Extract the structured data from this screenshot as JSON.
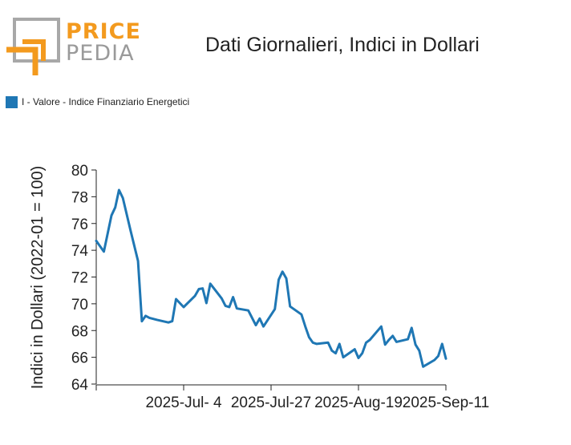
{
  "logo": {
    "brand_top": "PRICE",
    "brand_bottom": "PEDIA"
  },
  "colors": {
    "series": "#1f77b4",
    "logo_orange": "#f39a1e",
    "logo_gray": "#a8a8a8"
  },
  "chart_data": {
    "type": "line",
    "title": "Dati Giornalieri, Indici in Dollari",
    "ylabel": "Indici in Dollari (2022-01 = 100)",
    "xlabel": "",
    "ylim": [
      64,
      80
    ],
    "xlim": [
      "2025-06-11",
      "2025-09-11"
    ],
    "yticks": [
      64,
      66,
      68,
      70,
      72,
      74,
      76,
      78,
      80
    ],
    "xticks": [
      {
        "date": "2025-06-11",
        "label": ""
      },
      {
        "date": "2025-07-04",
        "label": "2025-Jul- 4"
      },
      {
        "date": "2025-07-27",
        "label": "2025-Jul-27"
      },
      {
        "date": "2025-08-19",
        "label": "2025-Aug-19"
      },
      {
        "date": "2025-09-11",
        "label": "2025-Sep-11"
      }
    ],
    "legend": {
      "position": "top-left"
    },
    "grid": false,
    "series": [
      {
        "name": "I - Valore - Indice Finanziario Energetici",
        "color": "#1f77b4",
        "points": [
          [
            "2025-06-11",
            74.7
          ],
          [
            "2025-06-13",
            73.9
          ],
          [
            "2025-06-15",
            76.6
          ],
          [
            "2025-06-16",
            77.2
          ],
          [
            "2025-06-17",
            78.5
          ],
          [
            "2025-06-18",
            77.9
          ],
          [
            "2025-06-20",
            75.5
          ],
          [
            "2025-06-22",
            73.2
          ],
          [
            "2025-06-23",
            68.7
          ],
          [
            "2025-06-24",
            69.1
          ],
          [
            "2025-06-25",
            68.95
          ],
          [
            "2025-06-27",
            68.8
          ],
          [
            "2025-06-30",
            68.6
          ],
          [
            "2025-07-01",
            68.7
          ],
          [
            "2025-07-02",
            70.35
          ],
          [
            "2025-07-04",
            69.75
          ],
          [
            "2025-07-07",
            70.6
          ],
          [
            "2025-07-08",
            71.1
          ],
          [
            "2025-07-09",
            71.15
          ],
          [
            "2025-07-10",
            70.05
          ],
          [
            "2025-07-11",
            71.5
          ],
          [
            "2025-07-14",
            70.4
          ],
          [
            "2025-07-15",
            69.85
          ],
          [
            "2025-07-16",
            69.75
          ],
          [
            "2025-07-17",
            70.5
          ],
          [
            "2025-07-18",
            69.65
          ],
          [
            "2025-07-21",
            69.5
          ],
          [
            "2025-07-23",
            68.4
          ],
          [
            "2025-07-24",
            68.9
          ],
          [
            "2025-07-25",
            68.3
          ],
          [
            "2025-07-28",
            69.6
          ],
          [
            "2025-07-29",
            71.8
          ],
          [
            "2025-07-30",
            72.4
          ],
          [
            "2025-07-31",
            71.9
          ],
          [
            "2025-08-01",
            69.8
          ],
          [
            "2025-08-04",
            69.2
          ],
          [
            "2025-08-05",
            68.3
          ],
          [
            "2025-08-06",
            67.5
          ],
          [
            "2025-08-07",
            67.1
          ],
          [
            "2025-08-08",
            67.0
          ],
          [
            "2025-08-11",
            67.1
          ],
          [
            "2025-08-12",
            66.5
          ],
          [
            "2025-08-13",
            66.3
          ],
          [
            "2025-08-14",
            67.0
          ],
          [
            "2025-08-15",
            66.0
          ],
          [
            "2025-08-18",
            66.6
          ],
          [
            "2025-08-19",
            65.95
          ],
          [
            "2025-08-20",
            66.3
          ],
          [
            "2025-08-21",
            67.1
          ],
          [
            "2025-08-22",
            67.3
          ],
          [
            "2025-08-25",
            68.3
          ],
          [
            "2025-08-26",
            66.95
          ],
          [
            "2025-08-27",
            67.3
          ],
          [
            "2025-08-28",
            67.6
          ],
          [
            "2025-08-29",
            67.15
          ],
          [
            "2025-09-01",
            67.35
          ],
          [
            "2025-09-02",
            68.2
          ],
          [
            "2025-09-03",
            66.95
          ],
          [
            "2025-09-04",
            66.5
          ],
          [
            "2025-09-05",
            65.3
          ],
          [
            "2025-09-08",
            65.8
          ],
          [
            "2025-09-09",
            66.1
          ],
          [
            "2025-09-10",
            67.0
          ],
          [
            "2025-09-11",
            65.9
          ]
        ]
      }
    ]
  }
}
